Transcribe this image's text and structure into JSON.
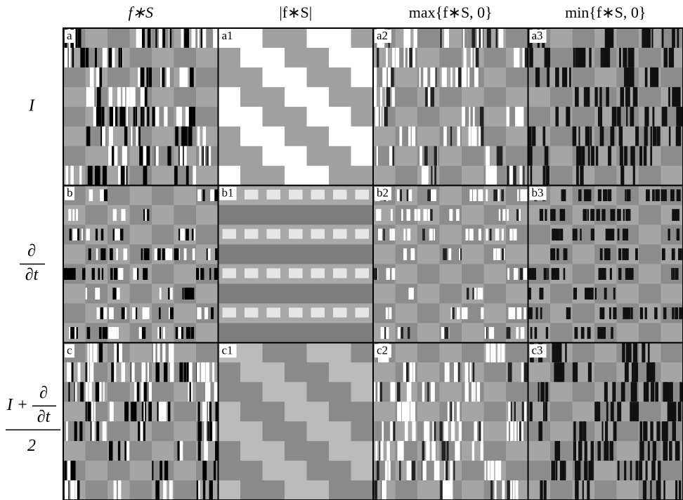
{
  "columns": [
    "f∗S",
    "|f∗S|",
    "max{f∗S, 0}",
    "min{f∗S, 0}"
  ],
  "rows": [
    {
      "label": "I"
    },
    {
      "numerator": "∂",
      "denominator": "∂t"
    },
    {
      "prefix": "I +",
      "numerator": "∂",
      "denominator": "∂t",
      "overall_denominator": "2"
    }
  ],
  "panels": [
    [
      "a",
      "a1",
      "a2",
      "a3"
    ],
    [
      "b",
      "b1",
      "b2",
      "b3"
    ],
    [
      "c",
      "c1",
      "c2",
      "c3"
    ]
  ]
}
